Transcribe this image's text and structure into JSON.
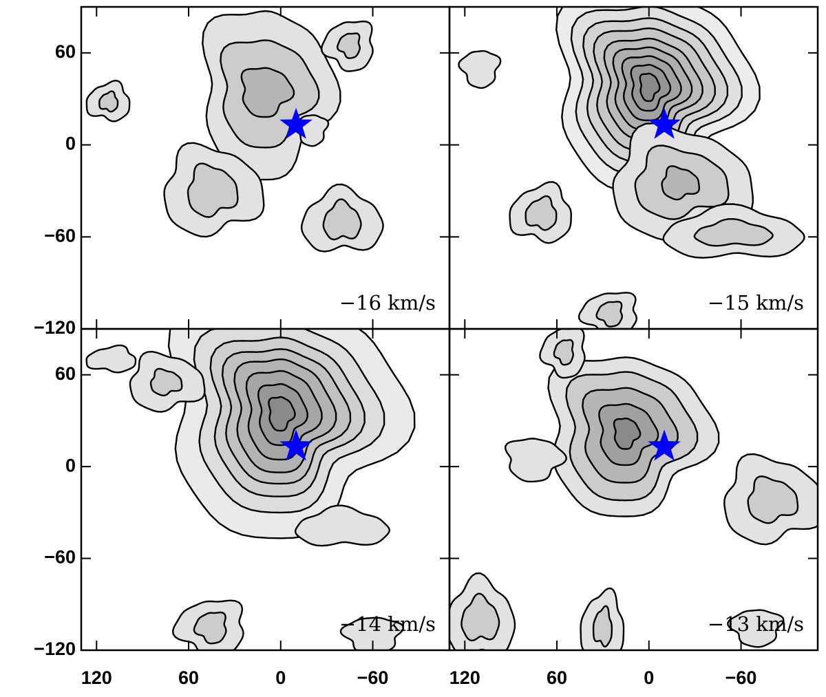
{
  "chart_data": [
    {
      "type": "contour",
      "title": "−16 km/s",
      "xlim": [
        130,
        -110
      ],
      "ylim": [
        -120,
        90
      ],
      "yticks": [
        {
          "value": -120,
          "label": "−120"
        },
        {
          "value": -60,
          "label": "−60"
        },
        0,
        60
      ],
      "star": {
        "x": -10,
        "y": 13,
        "color": "#0000ff"
      }
    },
    {
      "type": "contour",
      "title": "−15 km/s",
      "xlim": [
        130,
        -110
      ],
      "ylim": [
        -120,
        90
      ],
      "star": {
        "x": -10,
        "y": 13,
        "color": "#0000ff"
      }
    },
    {
      "type": "contour",
      "title": "−14 km/s",
      "xlim": [
        130,
        -110
      ],
      "ylim": [
        -120,
        90
      ],
      "xticks": [
        120,
        60,
        0,
        {
          "value": -60,
          "label": "−60"
        }
      ],
      "yticks": [
        {
          "value": -120,
          "label": "−120"
        },
        {
          "value": -60,
          "label": "−60"
        },
        0,
        60
      ],
      "star": {
        "x": -10,
        "y": 13,
        "color": "#0000ff"
      }
    },
    {
      "type": "contour",
      "title": "−13 km/s",
      "xlim": [
        130,
        -110
      ],
      "ylim": [
        -120,
        90
      ],
      "xticks": [
        120,
        60,
        0,
        {
          "value": -60,
          "label": "−60"
        }
      ],
      "star": {
        "x": -10,
        "y": 13,
        "color": "#0000ff"
      }
    }
  ]
}
